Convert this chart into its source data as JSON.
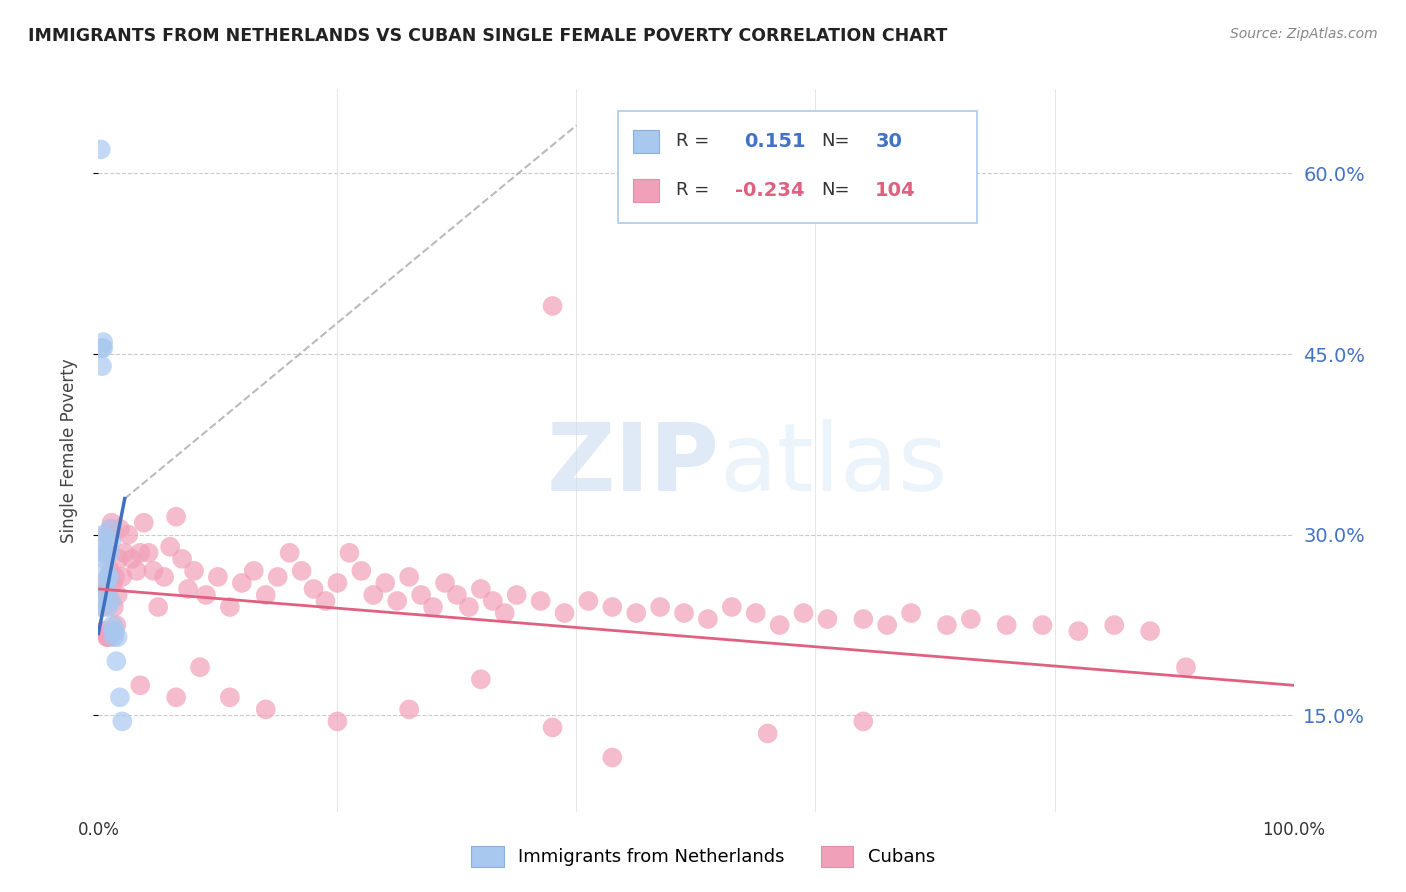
{
  "title": "IMMIGRANTS FROM NETHERLANDS VS CUBAN SINGLE FEMALE POVERTY CORRELATION CHART",
  "source": "Source: ZipAtlas.com",
  "ylabel": "Single Female Poverty",
  "xlim": [
    0.0,
    1.0
  ],
  "ylim": [
    0.07,
    0.67
  ],
  "yticks": [
    0.15,
    0.3,
    0.45,
    0.6
  ],
  "ytick_labels": [
    "15.0%",
    "30.0%",
    "45.0%",
    "60.0%"
  ],
  "xticks": [
    0.0,
    0.2,
    0.4,
    0.6,
    0.8,
    1.0
  ],
  "xtick_labels": [
    "0.0%",
    "",
    "",
    "",
    "",
    "100.0%"
  ],
  "r_netherlands": 0.151,
  "n_netherlands": 30,
  "r_cubans": -0.234,
  "n_cubans": 104,
  "blue_color": "#a8c8f0",
  "pink_color": "#f0a0b8",
  "blue_line_color": "#4070c0",
  "pink_line_color": "#e06080",
  "legend_label_blue": "Immigrants from Netherlands",
  "legend_label_pink": "Cubans",
  "watermark_zip": "ZIP",
  "watermark_atlas": "atlas",
  "nl_x": [
    0.002,
    0.003,
    0.003,
    0.004,
    0.004,
    0.005,
    0.005,
    0.006,
    0.006,
    0.007,
    0.007,
    0.008,
    0.008,
    0.009,
    0.01,
    0.01,
    0.011,
    0.011,
    0.012,
    0.012,
    0.013,
    0.014,
    0.015,
    0.016,
    0.018,
    0.02,
    0.001,
    0.002,
    0.003,
    0.004
  ],
  "nl_y": [
    0.62,
    0.44,
    0.455,
    0.455,
    0.46,
    0.295,
    0.28,
    0.285,
    0.27,
    0.26,
    0.25,
    0.265,
    0.24,
    0.265,
    0.285,
    0.305,
    0.295,
    0.245,
    0.225,
    0.22,
    0.215,
    0.22,
    0.195,
    0.215,
    0.165,
    0.145,
    0.24,
    0.245,
    0.285,
    0.3
  ],
  "cu_x": [
    0.002,
    0.003,
    0.004,
    0.004,
    0.005,
    0.006,
    0.007,
    0.007,
    0.008,
    0.009,
    0.01,
    0.01,
    0.011,
    0.012,
    0.013,
    0.014,
    0.015,
    0.016,
    0.017,
    0.018,
    0.02,
    0.022,
    0.025,
    0.028,
    0.032,
    0.035,
    0.038,
    0.042,
    0.046,
    0.05,
    0.055,
    0.06,
    0.065,
    0.07,
    0.075,
    0.08,
    0.09,
    0.1,
    0.11,
    0.12,
    0.13,
    0.14,
    0.15,
    0.16,
    0.17,
    0.18,
    0.19,
    0.2,
    0.21,
    0.22,
    0.23,
    0.24,
    0.25,
    0.26,
    0.27,
    0.28,
    0.29,
    0.3,
    0.31,
    0.32,
    0.33,
    0.34,
    0.35,
    0.37,
    0.39,
    0.41,
    0.43,
    0.45,
    0.47,
    0.49,
    0.51,
    0.53,
    0.55,
    0.57,
    0.59,
    0.61,
    0.64,
    0.66,
    0.68,
    0.71,
    0.73,
    0.76,
    0.79,
    0.82,
    0.85,
    0.88,
    0.91,
    0.003,
    0.005,
    0.007,
    0.008,
    0.009,
    0.035,
    0.065,
    0.085,
    0.11,
    0.14,
    0.2,
    0.26,
    0.32,
    0.38,
    0.43,
    0.56,
    0.64
  ],
  "cu_y": [
    0.25,
    0.255,
    0.24,
    0.22,
    0.22,
    0.245,
    0.3,
    0.285,
    0.25,
    0.265,
    0.27,
    0.305,
    0.31,
    0.26,
    0.24,
    0.265,
    0.225,
    0.25,
    0.28,
    0.305,
    0.265,
    0.285,
    0.3,
    0.28,
    0.27,
    0.285,
    0.31,
    0.285,
    0.27,
    0.24,
    0.265,
    0.29,
    0.315,
    0.28,
    0.255,
    0.27,
    0.25,
    0.265,
    0.24,
    0.26,
    0.27,
    0.25,
    0.265,
    0.285,
    0.27,
    0.255,
    0.245,
    0.26,
    0.285,
    0.27,
    0.25,
    0.26,
    0.245,
    0.265,
    0.25,
    0.24,
    0.26,
    0.25,
    0.24,
    0.255,
    0.245,
    0.235,
    0.25,
    0.245,
    0.235,
    0.245,
    0.24,
    0.235,
    0.24,
    0.235,
    0.23,
    0.24,
    0.235,
    0.225,
    0.235,
    0.23,
    0.23,
    0.225,
    0.235,
    0.225,
    0.23,
    0.225,
    0.225,
    0.22,
    0.225,
    0.22,
    0.19,
    0.26,
    0.25,
    0.215,
    0.215,
    0.215,
    0.175,
    0.165,
    0.19,
    0.165,
    0.155,
    0.145,
    0.155,
    0.18,
    0.14,
    0.115,
    0.135,
    0.145
  ],
  "cu_extra_x": [
    0.38
  ],
  "cu_extra_y": [
    0.49
  ],
  "trend_nl_x0": 0.0,
  "trend_nl_y0": 0.218,
  "trend_nl_x1": 0.022,
  "trend_nl_y1": 0.33,
  "trend_dash_x0": 0.022,
  "trend_dash_y0": 0.33,
  "trend_dash_x1": 0.4,
  "trend_dash_y1": 0.64,
  "trend_cu_x0": 0.0,
  "trend_cu_y0": 0.255,
  "trend_cu_x1": 1.0,
  "trend_cu_y1": 0.175
}
